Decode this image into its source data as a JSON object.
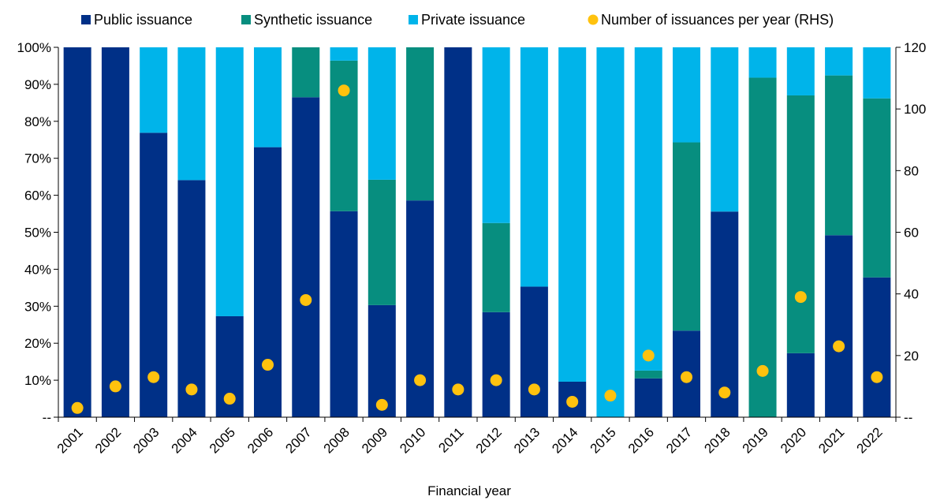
{
  "chart_data": {
    "type": "bar",
    "stacked": true,
    "title": "",
    "xlabel": "Financial year",
    "ylabel": "",
    "ylabel_right": "",
    "categories": [
      "2001",
      "2002",
      "2003",
      "2004",
      "2005",
      "2006",
      "2007",
      "2008",
      "2009",
      "2010",
      "2011",
      "2012",
      "2013",
      "2014",
      "2015",
      "2016",
      "2017",
      "2018",
      "2019",
      "2020",
      "2021",
      "2022"
    ],
    "series": [
      {
        "name": "Public issuance",
        "color": "#003087",
        "values": [
          100,
          100,
          76.9,
          64.1,
          27.3,
          73.0,
          86.5,
          55.7,
          30.3,
          58.6,
          100,
          28.4,
          35.3,
          9.6,
          0,
          10.5,
          23.4,
          55.6,
          0,
          17.3,
          49.2,
          37.8
        ]
      },
      {
        "name": "Synthetic issuance",
        "color": "#078E7F",
        "values": [
          0,
          0,
          0,
          0,
          0,
          0,
          13.5,
          40.7,
          33.9,
          41.4,
          0,
          24.1,
          0,
          0,
          0,
          2.1,
          50.9,
          0,
          91.8,
          69.7,
          43.2,
          48.4
        ]
      },
      {
        "name": "Private issuance",
        "color": "#00B4EA",
        "values": [
          0,
          0,
          23.1,
          35.9,
          72.7,
          27.0,
          0,
          3.6,
          35.8,
          0,
          0,
          47.5,
          64.7,
          90.4,
          100,
          87.4,
          25.7,
          44.4,
          8.2,
          13.0,
          7.6,
          13.8
        ]
      }
    ],
    "scatter_series": {
      "name": "Number of issuances per year (RHS)",
      "color": "#FFC20E",
      "axis": "right",
      "values": [
        3,
        10,
        13,
        9,
        6,
        17,
        38,
        106,
        4,
        12,
        9,
        12,
        9,
        5,
        7,
        20,
        13,
        8,
        15,
        39,
        23,
        13
      ]
    },
    "left_axis": {
      "ylim": [
        0,
        100
      ],
      "ticks": [
        "--",
        "10%",
        "20%",
        "30%",
        "40%",
        "50%",
        "60%",
        "70%",
        "80%",
        "90%",
        "100%"
      ]
    },
    "right_axis": {
      "ylim": [
        0,
        120
      ],
      "ticks": [
        "--",
        "20",
        "40",
        "60",
        "80",
        "100",
        "120"
      ]
    },
    "grid": false,
    "legend_position": "top"
  }
}
